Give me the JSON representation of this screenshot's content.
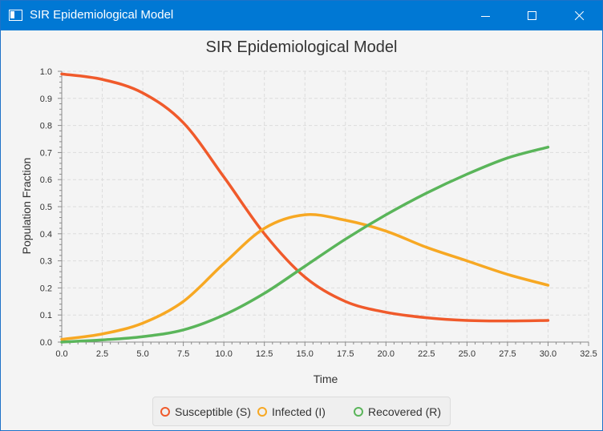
{
  "window": {
    "title": "SIR Epidemiological Model"
  },
  "chart_data": {
    "type": "line",
    "title": "SIR Epidemiological Model",
    "xlabel": "Time",
    "ylabel": "Population Fraction",
    "xlim": [
      0,
      32.5
    ],
    "ylim": [
      0,
      1.0
    ],
    "x_ticks": [
      "0.0",
      "2.5",
      "5.0",
      "7.5",
      "10.0",
      "12.5",
      "15.0",
      "17.5",
      "20.0",
      "22.5",
      "25.0",
      "27.5",
      "30.0",
      "32.5"
    ],
    "y_ticks": [
      "0.0",
      "0.1",
      "0.2",
      "0.3",
      "0.4",
      "0.5",
      "0.6",
      "0.7",
      "0.8",
      "0.9",
      "1.0"
    ],
    "grid": true,
    "legend_position": "bottom",
    "x": [
      0,
      2.5,
      5,
      7.5,
      10,
      12.5,
      15,
      17.5,
      20,
      22.5,
      25,
      27.5,
      30
    ],
    "series": [
      {
        "name": "Susceptible (S)",
        "color": "#f05a2b",
        "values": [
          0.99,
          0.97,
          0.92,
          0.81,
          0.61,
          0.4,
          0.24,
          0.15,
          0.11,
          0.09,
          0.08,
          0.078,
          0.08
        ]
      },
      {
        "name": "Infected (I)",
        "color": "#f7a823",
        "values": [
          0.01,
          0.03,
          0.07,
          0.15,
          0.29,
          0.42,
          0.47,
          0.45,
          0.41,
          0.35,
          0.3,
          0.25,
          0.21
        ]
      },
      {
        "name": "Recovered (R)",
        "color": "#5ab55a",
        "values": [
          0.0,
          0.008,
          0.02,
          0.045,
          0.1,
          0.18,
          0.28,
          0.38,
          0.47,
          0.55,
          0.62,
          0.68,
          0.72
        ]
      }
    ]
  }
}
